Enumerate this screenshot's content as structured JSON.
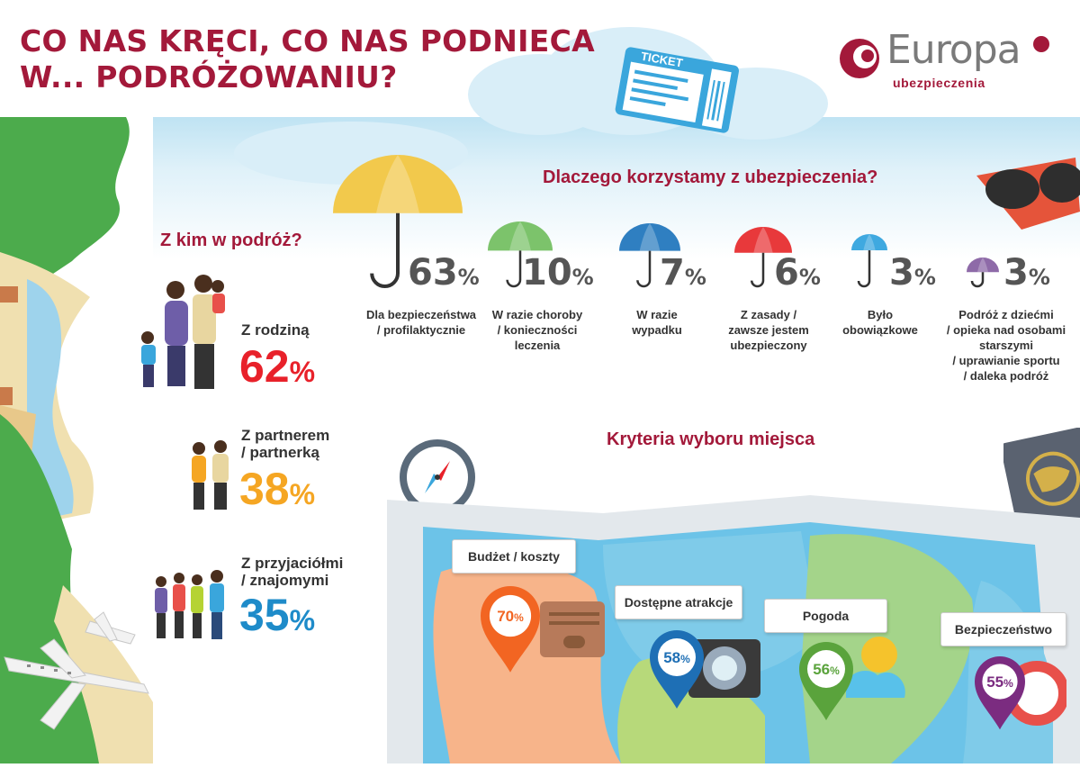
{
  "title": {
    "line1": "CO NAS KRĘCI, CO NAS PODNIECA",
    "line2": "W... PODRÓŻOWANIU?"
  },
  "logo": {
    "name": "Europa",
    "sub": "ubezpieczenia"
  },
  "ticket_label": "TICKET",
  "colors": {
    "brand": "#a3193a",
    "red": "#e8212a",
    "orange": "#f5a623",
    "blue": "#1e8bc9"
  },
  "companions": {
    "heading": "Z kim w podróż?",
    "items": [
      {
        "label1": "Z rodziną",
        "label2": "",
        "pct": "62",
        "color": "#e8212a"
      },
      {
        "label1": "Z partnerem",
        "label2": "/ partnerką",
        "pct": "38",
        "color": "#f5a623"
      },
      {
        "label1": "Z przyjaciółmi",
        "label2": "/ znajomymi",
        "pct": "35",
        "color": "#1e8bc9"
      }
    ],
    "suffix": "%"
  },
  "insurance": {
    "heading": "Dlaczego korzystamy z ubezpieczenia?",
    "suffix": "%",
    "items": [
      {
        "pct": "63",
        "desc": [
          "Dla bezpieczeństwa",
          "/ profilaktycznie"
        ],
        "color": "#f2c94c"
      },
      {
        "pct": "10",
        "desc": [
          "W razie choroby",
          "/ konieczności",
          "leczenia"
        ],
        "color": "#7cc36b"
      },
      {
        "pct": "7",
        "desc": [
          "W razie",
          "wypadku"
        ],
        "color": "#2f7fc1"
      },
      {
        "pct": "6",
        "desc": [
          "Z zasady /",
          "zawsze jestem",
          "ubezpieczony"
        ],
        "color": "#e8393b"
      },
      {
        "pct": "3",
        "desc": [
          "Było",
          "obowiązkowe"
        ],
        "color": "#3fa9e0"
      },
      {
        "pct": "3",
        "desc": [
          "Podróż z dziećmi",
          "/ opieka nad osobami",
          "starszymi",
          "/ uprawianie sportu",
          "/ daleka podróż"
        ],
        "color": "#8e6aa8"
      }
    ]
  },
  "criteria": {
    "heading": "Kryteria wyboru miejsca",
    "suffix": "%",
    "items": [
      {
        "label": "Budżet / koszty",
        "pct": "70",
        "color": "#f26522"
      },
      {
        "label": "Dostępne atrakcje",
        "pct": "58",
        "color": "#1e6fb5"
      },
      {
        "label": "Pogoda",
        "pct": "56",
        "color": "#5aa33c"
      },
      {
        "label": "Bezpieczeństwo",
        "pct": "55",
        "color": "#7b2c80"
      }
    ]
  }
}
